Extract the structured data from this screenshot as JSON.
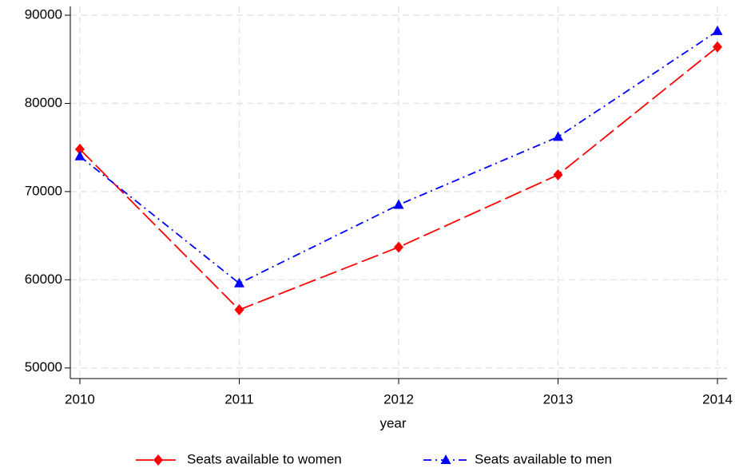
{
  "chart_data": {
    "type": "line",
    "x_label": "year",
    "x": [
      2010,
      2011,
      2012,
      2013,
      2014
    ],
    "series": [
      {
        "name": "Seats available to women",
        "color": "#ff0000",
        "marker": "diamond",
        "dash": "long-dash",
        "values": [
          74800,
          56600,
          63700,
          71900,
          86400
        ]
      },
      {
        "name": "Seats available to men",
        "color": "#0000ff",
        "marker": "triangle",
        "dash": "dash-dot",
        "values": [
          74000,
          59600,
          68500,
          76200,
          88200
        ]
      }
    ],
    "xlim": [
      2009.94,
      2014.06
    ],
    "xticks": [
      2010,
      2011,
      2012,
      2013,
      2014
    ],
    "ylim": [
      48800,
      91000
    ],
    "yticks": [
      50000,
      60000,
      70000,
      80000,
      90000
    ],
    "grid": true,
    "legend": "bottom"
  }
}
